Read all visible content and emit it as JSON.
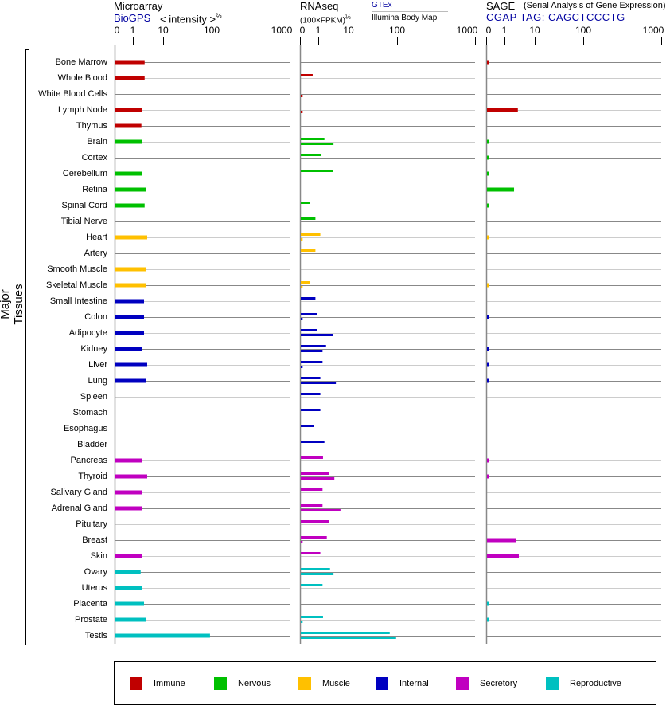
{
  "header": {
    "microarray": {
      "title": "Microarray",
      "source": "BioGPS",
      "unit": "< intensity >",
      "unit_exp": "⅔"
    },
    "rnaseq": {
      "title": "RNAseq",
      "unit": "(100×FPKM)",
      "unit_exp": "½",
      "series_top": "GTEx",
      "series_bottom": "Illumina Body Map"
    },
    "sage": {
      "title": "SAGE",
      "subtitle": "(Serial Analysis of Gene Expression)",
      "tag": "CGAP TAG: CAGCTCCCTG"
    }
  },
  "y_axis_label": "Major Tissues",
  "legend": [
    {
      "label": "Immune",
      "color": "#c00000"
    },
    {
      "label": "Nervous",
      "color": "#00c000"
    },
    {
      "label": "Muscle",
      "color": "#ffc000"
    },
    {
      "label": "Internal",
      "color": "#0000c0"
    },
    {
      "label": "Secretory",
      "color": "#c000c0"
    },
    {
      "label": "Reproductive",
      "color": "#00c0c0"
    }
  ],
  "chart_data": {
    "type": "bar",
    "orientation": "horizontal",
    "x_ticks": [
      "0",
      "1",
      "10",
      "100",
      "1000"
    ],
    "x_tick_values": [
      0,
      1,
      10,
      100,
      1000
    ],
    "xlim": [
      0,
      1000
    ],
    "panels": [
      "microarray",
      "gtex",
      "illumina",
      "sage"
    ],
    "tissues": [
      {
        "name": "Bone Marrow",
        "group": 0,
        "microarray": 2.3,
        "gtex": null,
        "illumina": null,
        "sage": 0.1
      },
      {
        "name": "Whole Blood",
        "group": 0,
        "microarray": 2.3,
        "gtex": 0.65,
        "illumina": null,
        "sage": null
      },
      {
        "name": "White Blood Cells",
        "group": 0,
        "microarray": null,
        "gtex": null,
        "illumina": 0.1,
        "sage": null
      },
      {
        "name": "Lymph Node",
        "group": 0,
        "microarray": 1.9,
        "gtex": null,
        "illumina": 0.1,
        "sage": 2.6
      },
      {
        "name": "Thymus",
        "group": 0,
        "microarray": 1.8,
        "gtex": null,
        "illumina": null,
        "sage": null
      },
      {
        "name": "Brain",
        "group": 1,
        "microarray": 1.9,
        "gtex": 1.5,
        "illumina": 3.0,
        "sage": 0.1
      },
      {
        "name": "Cortex",
        "group": 1,
        "microarray": null,
        "gtex": 1.2,
        "illumina": null,
        "sage": 0.1
      },
      {
        "name": "Cerebellum",
        "group": 1,
        "microarray": 1.9,
        "gtex": 2.8,
        "illumina": null,
        "sage": 0.1
      },
      {
        "name": "Retina",
        "group": 1,
        "microarray": 2.5,
        "gtex": null,
        "illumina": null,
        "sage": 1.95
      },
      {
        "name": "Spinal Cord",
        "group": 1,
        "microarray": 2.3,
        "gtex": 0.5,
        "illumina": null,
        "sage": 0.1
      },
      {
        "name": "Tibial Nerve",
        "group": 1,
        "microarray": null,
        "gtex": 0.8,
        "illumina": null,
        "sage": null
      },
      {
        "name": "Heart",
        "group": 2,
        "microarray": 2.8,
        "gtex": 1.1,
        "illumina": 0.1,
        "sage": 0.1
      },
      {
        "name": "Artery",
        "group": 2,
        "microarray": null,
        "gtex": 0.8,
        "illumina": null,
        "sage": null
      },
      {
        "name": "Smooth Muscle",
        "group": 2,
        "microarray": 2.5,
        "gtex": null,
        "illumina": null,
        "sage": null
      },
      {
        "name": "Skeletal Muscle",
        "group": 2,
        "microarray": 2.6,
        "gtex": 0.5,
        "illumina": 0.1,
        "sage": 0.1
      },
      {
        "name": "Small Intestine",
        "group": 3,
        "microarray": 2.2,
        "gtex": 0.8,
        "illumina": null,
        "sage": null
      },
      {
        "name": "Colon",
        "group": 3,
        "microarray": 2.2,
        "gtex": 0.9,
        "illumina": 0.1,
        "sage": 0.1
      },
      {
        "name": "Adipocyte",
        "group": 3,
        "microarray": 2.2,
        "gtex": 0.9,
        "illumina": 2.8,
        "sage": null
      },
      {
        "name": "Kidney",
        "group": 3,
        "microarray": 1.9,
        "gtex": 1.7,
        "illumina": 1.3,
        "sage": 0.1
      },
      {
        "name": "Liver",
        "group": 3,
        "microarray": 2.8,
        "gtex": 1.3,
        "illumina": 0.1,
        "sage": 0.1
      },
      {
        "name": "Lung",
        "group": 3,
        "microarray": 2.5,
        "gtex": 1.1,
        "illumina": 3.6,
        "sage": 0.1
      },
      {
        "name": "Spleen",
        "group": 3,
        "microarray": null,
        "gtex": 1.1,
        "illumina": null,
        "sage": null
      },
      {
        "name": "Stomach",
        "group": 3,
        "microarray": null,
        "gtex": 1.1,
        "illumina": null,
        "sage": null
      },
      {
        "name": "Esophagus",
        "group": 3,
        "microarray": null,
        "gtex": 0.7,
        "illumina": null,
        "sage": null
      },
      {
        "name": "Bladder",
        "group": 3,
        "microarray": null,
        "gtex": 1.5,
        "illumina": null,
        "sage": null
      },
      {
        "name": "Pancreas",
        "group": 4,
        "microarray": 1.9,
        "gtex": 1.35,
        "illumina": null,
        "sage": 0.1
      },
      {
        "name": "Thyroid",
        "group": 4,
        "microarray": 2.8,
        "gtex": 2.2,
        "illumina": 3.2,
        "sage": 0.1
      },
      {
        "name": "Salivary Gland",
        "group": 4,
        "microarray": 1.9,
        "gtex": 1.3,
        "illumina": null,
        "sage": null
      },
      {
        "name": "Adrenal Gland",
        "group": 4,
        "microarray": 1.9,
        "gtex": 1.3,
        "illumina": 5.1,
        "sage": null
      },
      {
        "name": "Pituitary",
        "group": 4,
        "microarray": null,
        "gtex": 2.1,
        "illumina": null,
        "sage": null
      },
      {
        "name": "Breast",
        "group": 4,
        "microarray": null,
        "gtex": 1.8,
        "illumina": 0.1,
        "sage": 2.2
      },
      {
        "name": "Skin",
        "group": 4,
        "microarray": 1.9,
        "gtex": 1.1,
        "illumina": null,
        "sage": 2.8
      },
      {
        "name": "Ovary",
        "group": 5,
        "microarray": 1.7,
        "gtex": 2.3,
        "illumina": 3.0,
        "sage": null
      },
      {
        "name": "Uterus",
        "group": 5,
        "microarray": 1.9,
        "gtex": 1.3,
        "illumina": null,
        "sage": null
      },
      {
        "name": "Placenta",
        "group": 5,
        "microarray": 2.2,
        "gtex": null,
        "illumina": null,
        "sage": 0.1
      },
      {
        "name": "Prostate",
        "group": 5,
        "microarray": 2.5,
        "gtex": 1.35,
        "illumina": 0.1,
        "sage": 0.1
      },
      {
        "name": "Testis",
        "group": 5,
        "microarray": 89,
        "gtex": 68,
        "illumina": 92,
        "sage": null
      }
    ]
  }
}
